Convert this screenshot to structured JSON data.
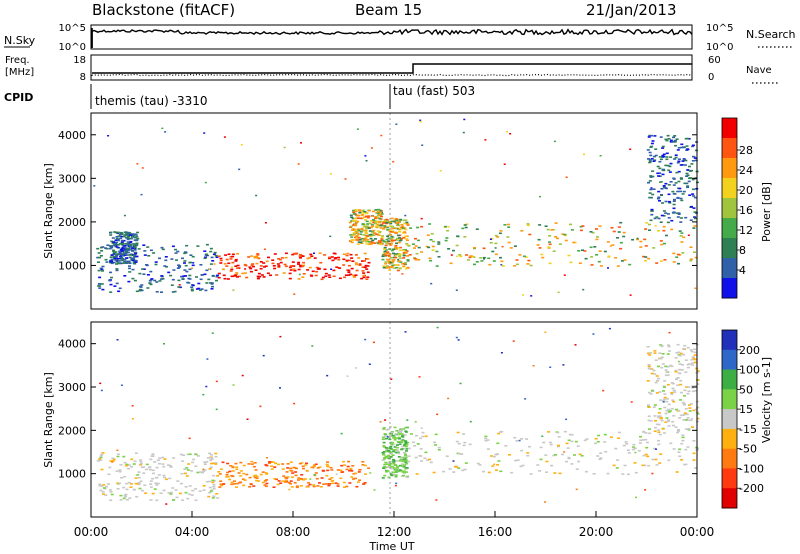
{
  "header": {
    "station": "Blackstone (fitACF)",
    "beam": "Beam 15",
    "date": "21/Jan/2013"
  },
  "nsky_panel": {
    "left_label": "N.Sky",
    "right_label": "N.Search",
    "left_ticks": [
      "10^5",
      "10^0"
    ],
    "right_ticks": [
      "10^5",
      "10^0"
    ]
  },
  "freq_panel": {
    "left_label_line1": "Freq.",
    "left_label_line2": "[MHz]",
    "right_label": "Nave",
    "left_ticks": [
      "18",
      "8"
    ],
    "right_ticks": [
      "60",
      "0"
    ]
  },
  "cpid_panel": {
    "label": "CPID",
    "programs": [
      "themis (tau) -3310",
      "tau (fast) 503"
    ]
  },
  "chart_data": [
    {
      "type": "heatmap",
      "name": "power",
      "ylabel": "Slant Range [km]",
      "y_ticks": [
        "1000",
        "2000",
        "3000",
        "4000"
      ],
      "ylim": [
        0,
        4500
      ],
      "colorbar": {
        "label": "Power [dB]",
        "ticks": [
          "4",
          "8",
          "12",
          "16",
          "20",
          "24",
          "28"
        ],
        "colors": [
          "#1010e8",
          "#3060a8",
          "#2f7f55",
          "#44aa4a",
          "#a0c43e",
          "#f2d21e",
          "#ff9a10",
          "#ff5510",
          "#f20000"
        ]
      },
      "echo_regions": [
        {
          "t": [
            0.7,
            1.8
          ],
          "r": [
            1050,
            1800
          ],
          "level": "low"
        },
        {
          "t": [
            0.2,
            5.0
          ],
          "r": [
            400,
            1500
          ],
          "level": "low"
        },
        {
          "t": [
            5.0,
            11.0
          ],
          "r": [
            700,
            1300
          ],
          "level": "high"
        },
        {
          "t": [
            10.2,
            11.5
          ],
          "r": [
            1500,
            2300
          ],
          "level": "mid"
        },
        {
          "t": [
            11.5,
            12.5
          ],
          "r": [
            900,
            2100
          ],
          "level": "mid"
        },
        {
          "t": [
            12.5,
            24.0
          ],
          "r": [
            1000,
            2000
          ],
          "level": "mid"
        },
        {
          "t": [
            22.0,
            24.0
          ],
          "r": [
            2000,
            4000
          ],
          "level": "low"
        }
      ]
    },
    {
      "type": "heatmap",
      "name": "velocity",
      "ylabel": "Slant Range [km]",
      "xlabel": "Time UT",
      "x_ticks": [
        "00:00",
        "04:00",
        "08:00",
        "12:00",
        "16:00",
        "20:00",
        "00:00"
      ],
      "y_ticks": [
        "1000",
        "2000",
        "3000",
        "4000"
      ],
      "ylim": [
        0,
        4500
      ],
      "colorbar": {
        "label": "Velocity [m s-1]",
        "ticks": [
          "200",
          "100",
          "50",
          "15",
          "-15",
          "-50",
          "-100",
          "-200"
        ],
        "colors": [
          "#2030b8",
          "#2f67c8",
          "#3cae44",
          "#7ad247",
          "#c8c8c8",
          "#ffb010",
          "#ff7a10",
          "#ff3a10",
          "#e00000"
        ]
      },
      "echo_regions": [
        {
          "t": [
            0.2,
            5.0
          ],
          "r": [
            400,
            1500
          ],
          "level": "grey"
        },
        {
          "t": [
            5.0,
            11.0
          ],
          "r": [
            700,
            1300
          ],
          "level": "orange"
        },
        {
          "t": [
            11.5,
            12.5
          ],
          "r": [
            900,
            2100
          ],
          "level": "green"
        },
        {
          "t": [
            12.5,
            24.0
          ],
          "r": [
            1000,
            2000
          ],
          "level": "grey"
        },
        {
          "t": [
            22.0,
            24.0
          ],
          "r": [
            2000,
            4000
          ],
          "level": "grey"
        }
      ]
    }
  ]
}
